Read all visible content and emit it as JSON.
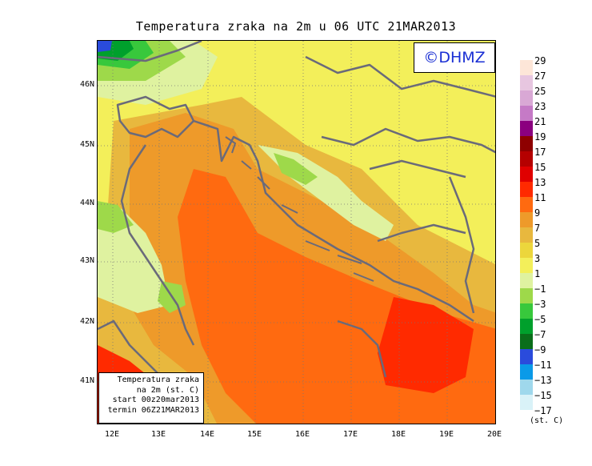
{
  "title": "Temperatura zraka na 2m u 06 UTC 21MAR2013",
  "logo": "©DHMZ",
  "info": {
    "line1": "Temperatura zraka",
    "line2": "na 2m (st. C)",
    "line3": "start 00z20mar2013",
    "line4": "termin 06Z21MAR2013"
  },
  "lat_labels": [
    "46N",
    "45N",
    "44N",
    "43N",
    "42N",
    "41N"
  ],
  "lon_labels": [
    "12E",
    "13E",
    "14E",
    "15E",
    "16E",
    "17E",
    "18E",
    "19E",
    "20E"
  ],
  "legend": {
    "unit": "(st. C)",
    "labels": [
      "29",
      "27",
      "25",
      "23",
      "21",
      "19",
      "17",
      "15",
      "13",
      "11",
      "9",
      "7",
      "5",
      "3",
      "1",
      "−1",
      "−3",
      "−5",
      "−7",
      "−9",
      "−11",
      "−13",
      "−15",
      "−17"
    ],
    "colors": [
      "#fde6d8",
      "#e7c6e0",
      "#d9a8d5",
      "#c57ac6",
      "#8b007f",
      "#8e0000",
      "#b50000",
      "#e00000",
      "#ff2a00",
      "#ff6a10",
      "#ee9a2a",
      "#e8b83e",
      "#ecd63c",
      "#f3ef5a",
      "#dff2a0",
      "#9ed94a",
      "#38c83c",
      "#00a02c",
      "#0a6e1a",
      "#2a4bdc",
      "#0a9ae8",
      "#9fd8ec",
      "#d9f2f8"
    ]
  },
  "palette": {
    "background": "#f3ef5a",
    "warm": "#e8b83e",
    "warmer": "#ee9a2a",
    "hot": "#ff6a10",
    "hottest": "#ff2a00",
    "cool": "#dff2a0",
    "cold": "#9ed94a",
    "colder": "#38c83c",
    "coldest": "#00a02c",
    "freezing": "#2a4bdc",
    "coast": "#6a6a7a"
  }
}
